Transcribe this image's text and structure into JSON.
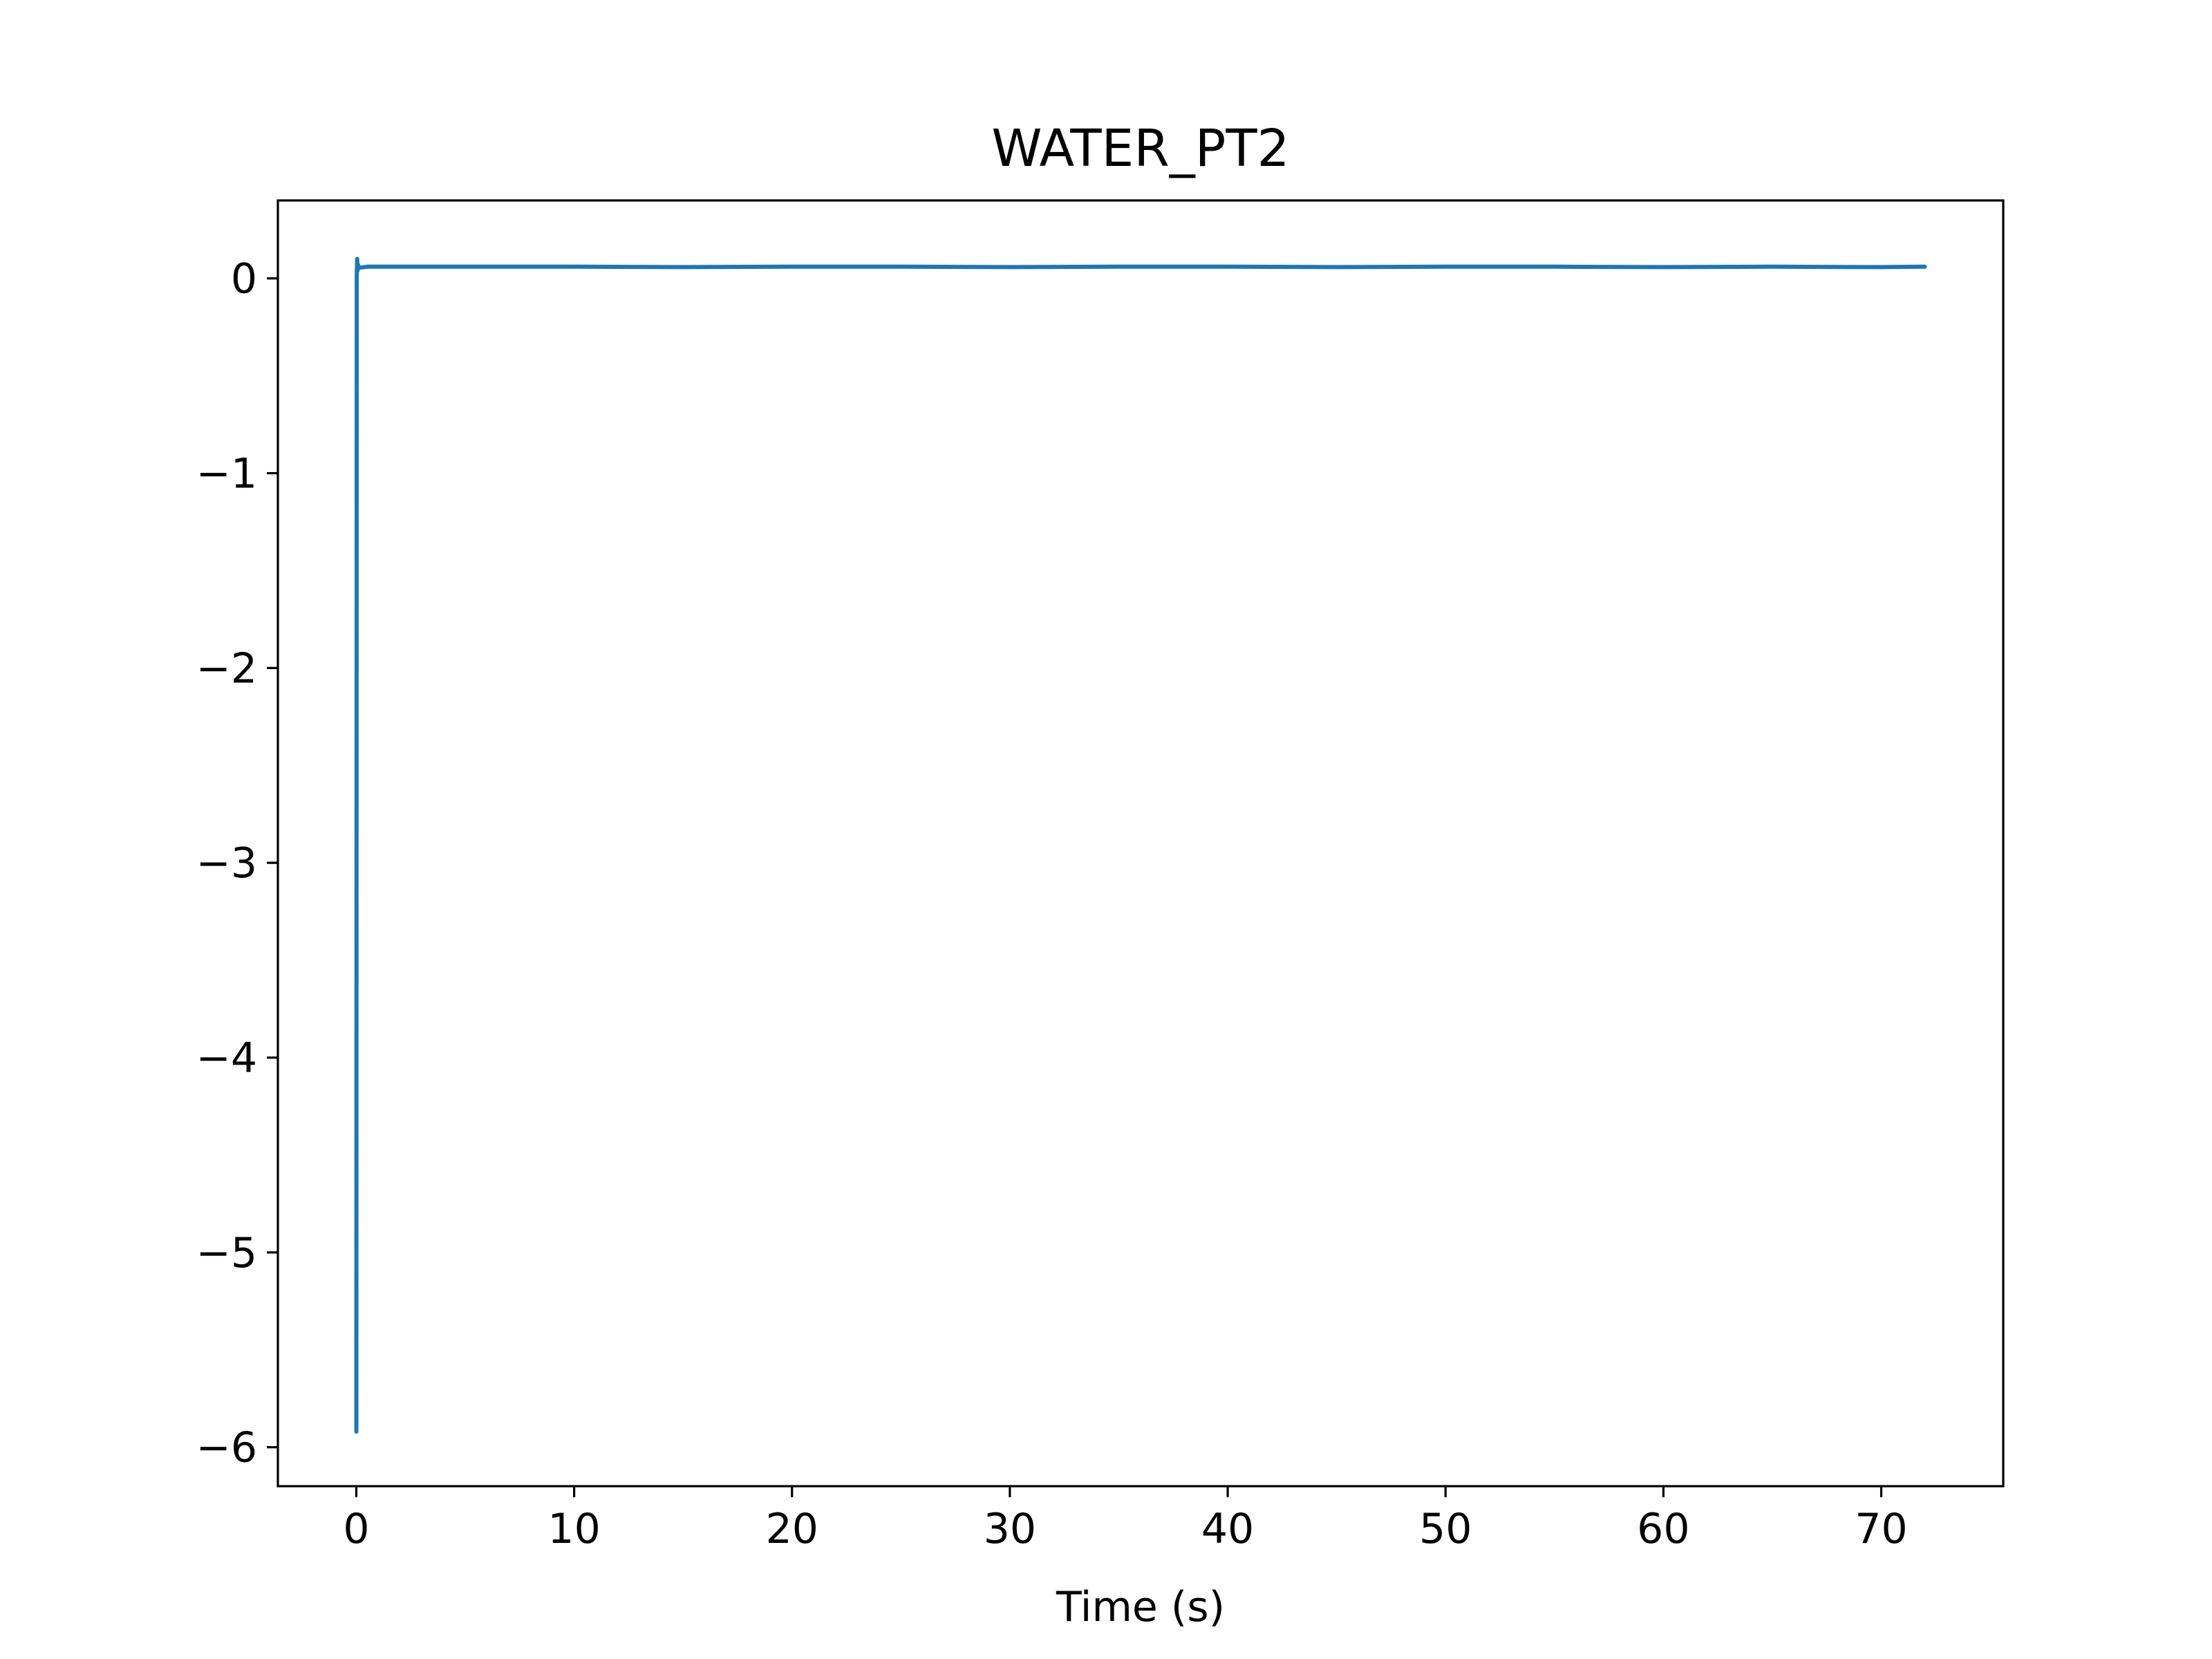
{
  "chart_data": {
    "type": "line",
    "title": "WATER_PT2",
    "xlabel": "Time (s)",
    "ylabel": "",
    "xlim": [
      -3.6,
      75.6
    ],
    "ylim": [
      -6.2,
      0.4
    ],
    "x_ticks": [
      0,
      10,
      20,
      30,
      40,
      50,
      60,
      70
    ],
    "x_tick_labels": [
      "0",
      "10",
      "20",
      "30",
      "40",
      "50",
      "60",
      "70"
    ],
    "y_ticks": [
      0,
      -1,
      -2,
      -3,
      -4,
      -5,
      -6
    ],
    "y_tick_labels": [
      "0",
      "−1",
      "−2",
      "−3",
      "−4",
      "−5",
      "−6"
    ],
    "grid": false,
    "legend": "none",
    "series": [
      {
        "color": "#1f77b4",
        "x": [
          0,
          0.02,
          0.04,
          0.06,
          0.08,
          0.1,
          0.2,
          0.5,
          1,
          5,
          10,
          15,
          20,
          25,
          30,
          35,
          40,
          45,
          50,
          55,
          60,
          65,
          70,
          72
        ],
        "y": [
          -5.92,
          0.02,
          0.1,
          0.04,
          0.07,
          0.06,
          0.055,
          0.06,
          0.06,
          0.06,
          0.06,
          0.058,
          0.06,
          0.06,
          0.058,
          0.06,
          0.06,
          0.058,
          0.06,
          0.06,
          0.058,
          0.06,
          0.058,
          0.06
        ]
      }
    ]
  }
}
